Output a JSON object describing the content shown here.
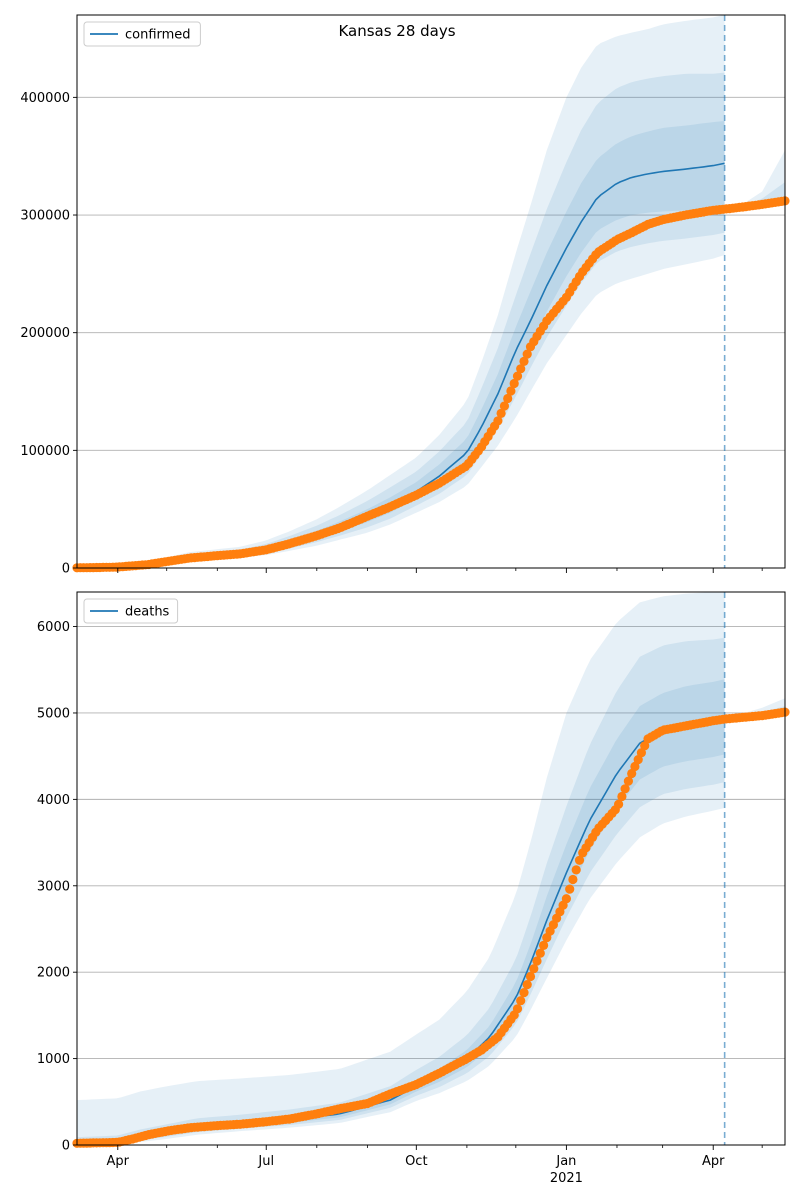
{
  "title": "Kansas 28 days",
  "colors": {
    "model": "#1f77b4",
    "observed": "#ff7f0e",
    "band": "#1f77b4",
    "grid": "#b0b0b0"
  },
  "x_ticks": [
    {
      "label": "Apr",
      "date": "2020-04-01"
    },
    {
      "label": "Jul",
      "date": "2020-07-01"
    },
    {
      "label": "Oct",
      "date": "2020-10-01"
    },
    {
      "label": "Jan",
      "sublabel": "2021",
      "date": "2021-01-01"
    },
    {
      "label": "Apr",
      "date": "2021-04-01"
    }
  ],
  "chart_data": [
    {
      "type": "line",
      "legend": "confirmed",
      "legend_location": "upper-left",
      "grid": "horizontal",
      "xlim": [
        "2020-03-07",
        "2021-05-15"
      ],
      "ylim": [
        0,
        470000
      ],
      "y_ticks": [
        0,
        100000,
        200000,
        300000,
        400000
      ],
      "forecast_date": "2021-04-08",
      "model": {
        "x": [
          "2020-03-07",
          "2020-04-01",
          "2020-04-20",
          "2020-05-15",
          "2020-06-15",
          "2020-07-01",
          "2020-07-15",
          "2020-08-01",
          "2020-08-15",
          "2020-09-01",
          "2020-09-15",
          "2020-10-01",
          "2020-10-15",
          "2020-11-01",
          "2020-11-10",
          "2020-11-20",
          "2020-12-01",
          "2020-12-10",
          "2020-12-20",
          "2021-01-01",
          "2021-01-10",
          "2021-01-20",
          "2021-02-01",
          "2021-02-10",
          "2021-02-20",
          "2021-03-01",
          "2021-03-15",
          "2021-04-01",
          "2021-04-08"
        ],
        "y": [
          500,
          1000,
          3000,
          9000,
          12000,
          16000,
          21000,
          28000,
          35000,
          44000,
          53000,
          65000,
          78000,
          98000,
          120000,
          148000,
          185000,
          210000,
          240000,
          272000,
          294000,
          315000,
          327000,
          332000,
          335000,
          337000,
          339000,
          342000,
          344000
        ]
      },
      "band_inner": {
        "low": [
          400,
          800,
          2500,
          8000,
          11000,
          14000,
          18500,
          25000,
          31000,
          39000,
          47000,
          59000,
          70000,
          88000,
          108000,
          132000,
          165000,
          190000,
          218000,
          248000,
          268000,
          287000,
          296000,
          300000,
          302000,
          303000,
          304000,
          305000,
          306000
        ],
        "high": [
          700,
          1300,
          3600,
          10000,
          13500,
          18000,
          23500,
          31500,
          39500,
          50000,
          60000,
          73000,
          88000,
          110000,
          135000,
          165000,
          205000,
          235000,
          268000,
          303000,
          327000,
          348000,
          361000,
          367000,
          371000,
          374000,
          376000,
          379000,
          380000
        ]
      },
      "band_mid": {
        "low": [
          300,
          600,
          2000,
          7000,
          10000,
          12500,
          16500,
          22000,
          27500,
          34500,
          42000,
          53000,
          63000,
          79000,
          97000,
          118000,
          146000,
          170000,
          196000,
          223000,
          242000,
          260000,
          269000,
          273000,
          276000,
          278000,
          280000,
          283000,
          285000
        ],
        "high": [
          900,
          1700,
          4400,
          11500,
          15500,
          20500,
          27000,
          36000,
          45000,
          57000,
          68500,
          82000,
          99000,
          124000,
          153000,
          187000,
          232000,
          267000,
          305000,
          345000,
          372000,
          395000,
          408000,
          413000,
          416000,
          418000,
          420000,
          420000,
          421000
        ]
      },
      "band_outer": {
        "low": [
          200,
          400,
          1500,
          6000,
          9000,
          11000,
          14500,
          19000,
          24000,
          30000,
          37000,
          47000,
          56000,
          70000,
          86000,
          104000,
          128000,
          150000,
          174000,
          198000,
          216000,
          233000,
          242000,
          246000,
          250000,
          254000,
          258000,
          263000,
          266000
        ],
        "high": [
          1200,
          2200,
          5400,
          13500,
          18000,
          23500,
          31000,
          41500,
          52000,
          66000,
          79000,
          94000,
          113000,
          142000,
          175000,
          215000,
          268000,
          308000,
          355000,
          400000,
          425000,
          445000,
          452000,
          455000,
          458000,
          462000,
          465000,
          468000,
          470000
        ]
      },
      "ext_outer": {
        "x": [
          "2021-04-08",
          "2021-04-20",
          "2021-05-01",
          "2021-05-15"
        ],
        "low": [
          302000,
          304000,
          306000,
          308000
        ],
        "high": [
          306000,
          310000,
          320000,
          355000
        ]
      },
      "ext_inner": {
        "x": [
          "2021-04-08",
          "2021-04-20",
          "2021-05-01",
          "2021-05-15"
        ],
        "low": [
          303000,
          305000,
          307000,
          309000
        ],
        "high": [
          305000,
          308000,
          314000,
          328000
        ]
      },
      "observed": {
        "x": [
          "2020-03-07",
          "2020-03-20",
          "2020-04-01",
          "2020-04-10",
          "2020-04-20",
          "2020-05-01",
          "2020-05-15",
          "2020-06-01",
          "2020-06-15",
          "2020-07-01",
          "2020-07-15",
          "2020-08-01",
          "2020-08-15",
          "2020-09-01",
          "2020-09-15",
          "2020-10-01",
          "2020-10-15",
          "2020-11-01",
          "2020-11-10",
          "2020-11-20",
          "2020-12-01",
          "2020-12-10",
          "2020-12-20",
          "2021-01-01",
          "2021-01-10",
          "2021-01-20",
          "2021-02-01",
          "2021-02-10",
          "2021-02-20",
          "2021-03-01",
          "2021-03-15",
          "2021-04-01",
          "2021-04-08",
          "2021-04-20",
          "2021-05-01",
          "2021-05-15"
        ],
        "y": [
          200,
          400,
          800,
          1800,
          3000,
          5500,
          8500,
          10500,
          12000,
          15500,
          20500,
          27500,
          34000,
          44000,
          52000,
          62000,
          72000,
          87000,
          103000,
          125000,
          160000,
          188000,
          210000,
          230000,
          250000,
          268000,
          279000,
          285000,
          292000,
          296000,
          300000,
          304000,
          305000,
          307000,
          309000,
          312000
        ]
      }
    },
    {
      "type": "line",
      "legend": "deaths",
      "legend_location": "upper-left",
      "grid": "horizontal",
      "xlim": [
        "2020-03-07",
        "2021-05-15"
      ],
      "ylim": [
        0,
        6400
      ],
      "y_ticks": [
        0,
        1000,
        2000,
        3000,
        4000,
        5000,
        6000
      ],
      "forecast_date": "2021-04-08",
      "model": {
        "x": [
          "2020-03-07",
          "2020-04-01",
          "2020-04-15",
          "2020-05-01",
          "2020-05-20",
          "2020-06-15",
          "2020-07-15",
          "2020-08-15",
          "2020-09-15",
          "2020-10-01",
          "2020-10-15",
          "2020-11-01",
          "2020-11-15",
          "2020-12-01",
          "2020-12-10",
          "2020-12-20",
          "2021-01-01",
          "2021-01-15",
          "2021-02-01",
          "2021-02-15",
          "2021-03-01",
          "2021-03-15",
          "2021-04-01",
          "2021-04-08"
        ],
        "y": [
          20,
          40,
          90,
          140,
          200,
          240,
          290,
          360,
          520,
          680,
          800,
          1000,
          1250,
          1700,
          2100,
          2600,
          3150,
          3750,
          4300,
          4650,
          4800,
          4870,
          4920,
          4950
        ]
      },
      "band_inner": {
        "low": [
          10,
          25,
          70,
          115,
          170,
          210,
          255,
          320,
          470,
          620,
          730,
          900,
          1120,
          1520,
          1880,
          2330,
          2850,
          3400,
          3900,
          4230,
          4380,
          4440,
          4490,
          4520
        ],
        "high": [
          40,
          60,
          115,
          170,
          235,
          275,
          330,
          410,
          580,
          750,
          880,
          1100,
          1380,
          1880,
          2320,
          2880,
          3480,
          4120,
          4700,
          5080,
          5230,
          5310,
          5360,
          5390
        ]
      },
      "band_mid": {
        "low": [
          5,
          15,
          55,
          95,
          150,
          190,
          230,
          290,
          430,
          570,
          670,
          830,
          1030,
          1400,
          1740,
          2150,
          2630,
          3140,
          3600,
          3910,
          4060,
          4120,
          4170,
          4200
        ],
        "high": [
          90,
          110,
          180,
          240,
          310,
          350,
          410,
          490,
          680,
          870,
          1020,
          1270,
          1590,
          2150,
          2640,
          3260,
          3920,
          4620,
          5260,
          5650,
          5780,
          5830,
          5850,
          5870
        ]
      },
      "band_outer": {
        "low": [
          0,
          5,
          35,
          70,
          120,
          160,
          200,
          255,
          380,
          510,
          600,
          740,
          920,
          1250,
          1560,
          1930,
          2370,
          2840,
          3270,
          3560,
          3720,
          3800,
          3870,
          3900
        ],
        "high": [
          520,
          540,
          620,
          680,
          740,
          770,
          810,
          880,
          1080,
          1280,
          1450,
          1780,
          2180,
          2900,
          3500,
          4250,
          5000,
          5600,
          6050,
          6280,
          6350,
          6380,
          6400,
          6400
        ]
      },
      "ext_outer": {
        "x": [
          "2021-04-08",
          "2021-04-20",
          "2021-05-01",
          "2021-05-15"
        ],
        "low": [
          4900,
          4920,
          4950,
          4980
        ],
        "high": [
          4950,
          5000,
          5060,
          5170
        ]
      },
      "ext_inner": {
        "x": [
          "2021-04-08",
          "2021-04-20",
          "2021-05-01",
          "2021-05-15"
        ],
        "low": [
          4910,
          4930,
          4960,
          4990
        ],
        "high": [
          4940,
          4970,
          5010,
          5080
        ]
      },
      "observed": {
        "x": [
          "2020-03-07",
          "2020-03-20",
          "2020-04-01",
          "2020-04-10",
          "2020-04-20",
          "2020-05-01",
          "2020-05-15",
          "2020-06-01",
          "2020-06-15",
          "2020-07-01",
          "2020-07-15",
          "2020-08-01",
          "2020-08-15",
          "2020-09-01",
          "2020-09-15",
          "2020-10-01",
          "2020-10-15",
          "2020-11-01",
          "2020-11-10",
          "2020-11-20",
          "2020-12-01",
          "2020-12-10",
          "2020-12-20",
          "2021-01-01",
          "2021-01-10",
          "2021-01-20",
          "2021-02-01",
          "2021-02-10",
          "2021-02-20",
          "2021-03-01",
          "2021-03-15",
          "2021-04-01",
          "2021-04-08",
          "2021-04-20",
          "2021-05-01",
          "2021-05-15"
        ],
        "y": [
          20,
          25,
          30,
          70,
          120,
          160,
          200,
          225,
          240,
          270,
          300,
          360,
          420,
          480,
          590,
          700,
          830,
          1000,
          1100,
          1250,
          1530,
          1950,
          2400,
          2850,
          3350,
          3650,
          3900,
          4300,
          4700,
          4800,
          4850,
          4910,
          4930,
          4950,
          4970,
          5010
        ]
      }
    }
  ]
}
